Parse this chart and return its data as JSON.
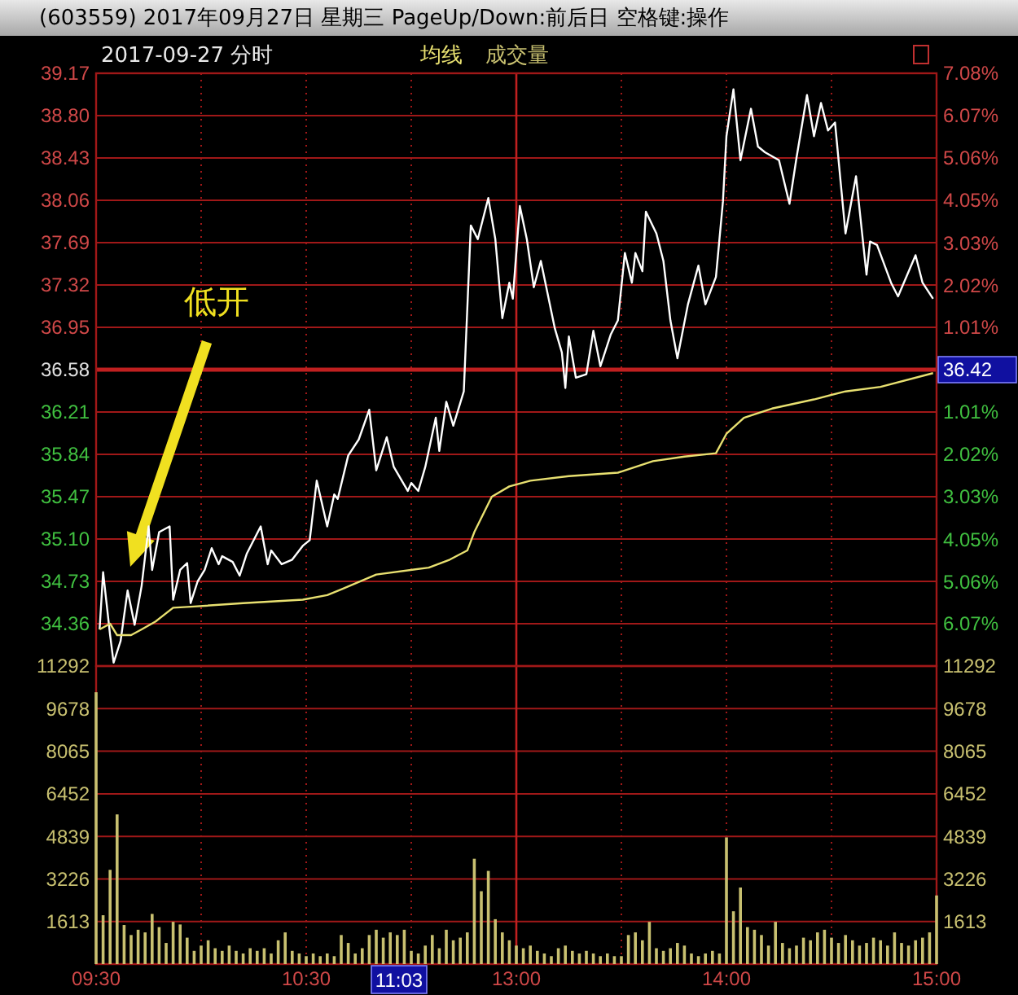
{
  "chart_data": [
    {
      "type": "line",
      "title": "(603559) 2017年09月27日 星期三 PageUp/Down:前后日 空格键:操作",
      "subtitle": "2017-09-27 分时",
      "categories": [
        "09:30",
        null,
        null,
        null,
        null,
        null,
        null,
        null,
        null,
        null,
        null,
        null,
        null,
        null,
        null,
        null,
        null,
        null,
        null,
        null,
        null,
        null,
        null,
        null,
        null,
        null,
        null,
        null,
        null,
        null,
        null,
        null,
        null,
        null,
        null,
        null,
        null,
        null,
        null,
        null,
        null,
        null,
        null,
        null,
        null,
        null,
        null,
        null,
        null,
        null,
        null,
        null,
        null,
        null,
        null,
        null,
        null,
        null,
        null,
        null,
        "10:30",
        null,
        null,
        null,
        null,
        null,
        null,
        null,
        null,
        null,
        null,
        null,
        null,
        null,
        null,
        null,
        null,
        null,
        null,
        null,
        null,
        null,
        null,
        null,
        null,
        null,
        null,
        null,
        null,
        null,
        null,
        null,
        null,
        null,
        null,
        null,
        null,
        null,
        null,
        null,
        null,
        null,
        null,
        null,
        null,
        null,
        null,
        null,
        null,
        null,
        null,
        null,
        null,
        null,
        null,
        null,
        null,
        null,
        null,
        null,
        "13:00",
        null,
        null,
        null,
        null,
        null,
        null,
        null,
        null,
        null,
        null,
        null,
        null,
        null,
        null,
        null,
        null,
        null,
        null,
        null,
        null,
        null,
        null,
        null,
        null,
        null,
        null,
        null,
        null,
        null,
        null,
        null,
        null,
        null,
        null,
        null,
        null,
        null,
        null,
        null,
        null,
        null,
        null,
        null,
        null,
        null,
        null,
        null,
        null,
        null,
        null,
        null,
        null,
        null,
        null,
        null,
        null,
        null,
        null,
        null,
        "14:00",
        null,
        null,
        null,
        null,
        null,
        null,
        null,
        null,
        null,
        null,
        null,
        null,
        null,
        null,
        null,
        null,
        null,
        null,
        null,
        null,
        null,
        null,
        null,
        null,
        null,
        null,
        null,
        null,
        null,
        null,
        null,
        null,
        null,
        null,
        null,
        null,
        null,
        null,
        null,
        null,
        null,
        null,
        null,
        null,
        null,
        null,
        null,
        null,
        null,
        null,
        null,
        null,
        null,
        null,
        null,
        null,
        null,
        null,
        null,
        "15:00"
      ],
      "series": [
        {
          "color": "#ffffff",
          "values": [
            null,
            34.31,
            34.81,
            null,
            34.26,
            34.02,
            null,
            34.21,
            null,
            34.65,
            null,
            34.35,
            null,
            34.69,
            null,
            35.21,
            34.83,
            null,
            35.16,
            null,
            null,
            35.21,
            34.57,
            null,
            34.83,
            null,
            34.89,
            34.54,
            null,
            34.73,
            null,
            34.83,
            null,
            35.02,
            null,
            34.88,
            34.95,
            null,
            null,
            34.9,
            null,
            34.78,
            null,
            34.97,
            null,
            null,
            null,
            35.21,
            null,
            34.88,
            35.0,
            null,
            null,
            34.88,
            null,
            null,
            34.92,
            null,
            null,
            35.04,
            null,
            35.09,
            null,
            35.61,
            null,
            null,
            35.21,
            null,
            35.49,
            35.45,
            null,
            null,
            35.83,
            null,
            null,
            35.97,
            null,
            null,
            36.23,
            null,
            35.7,
            null,
            null,
            35.99,
            null,
            35.73,
            null,
            null,
            null,
            35.52,
            35.59,
            null,
            35.52,
            null,
            35.73,
            null,
            null,
            36.16,
            35.87,
            null,
            36.3,
            null,
            36.09,
            null,
            null,
            36.39,
            null,
            37.84,
            null,
            37.72,
            null,
            null,
            38.08,
            null,
            37.72,
            null,
            37.03,
            null,
            37.34,
            37.2,
            null,
            38.01,
            null,
            37.72,
            null,
            37.3,
            null,
            37.53,
            null,
            null,
            null,
            36.94,
            null,
            36.73,
            36.42,
            36.87,
            null,
            36.51,
            null,
            null,
            36.54,
            null,
            36.92,
            null,
            36.61,
            null,
            null,
            36.89,
            null,
            37.01,
            null,
            37.6,
            null,
            37.34,
            37.6,
            null,
            37.44,
            37.96,
            null,
            null,
            37.77,
            null,
            37.53,
            null,
            37.01,
            null,
            36.68,
            null,
            null,
            37.15,
            null,
            null,
            37.49,
            null,
            37.15,
            null,
            null,
            37.39,
            null,
            38.05,
            38.62,
            null,
            39.03,
            null,
            38.41,
            null,
            null,
            38.86,
            null,
            38.53,
            null,
            38.48,
            null,
            null,
            null,
            38.41,
            null,
            null,
            38.03,
            null,
            38.43,
            null,
            null,
            38.98,
            null,
            38.62,
            null,
            38.91,
            null,
            38.67,
            null,
            38.74,
            null,
            null,
            37.77,
            null,
            null,
            38.27,
            null,
            null,
            37.41,
            37.7,
            null,
            37.67,
            null,
            null,
            null,
            37.34,
            null,
            37.22,
            null,
            null,
            null,
            null,
            37.58,
            null,
            37.34,
            null,
            null,
            37.2,
            null
          ]
        },
        {
          "name": "均线",
          "color": "#e8e070",
          "values": [
            null,
            34.31,
            null,
            null,
            34.36,
            null,
            34.26,
            null,
            null,
            null,
            34.26,
            null,
            null,
            34.31,
            null,
            null,
            null,
            34.38,
            null,
            null,
            null,
            null,
            34.5,
            null,
            null,
            null,
            null,
            null,
            34.51,
            null,
            null,
            null,
            null,
            null,
            null,
            null,
            null,
            null,
            null,
            null,
            null,
            null,
            34.54,
            null,
            null,
            null,
            null,
            null,
            null,
            null,
            null,
            null,
            null,
            null,
            null,
            null,
            null,
            null,
            null,
            34.57,
            null,
            null,
            null,
            null,
            null,
            null,
            34.61,
            null,
            null,
            null,
            34.66,
            null,
            null,
            null,
            null,
            null,
            null,
            null,
            null,
            null,
            34.79,
            null,
            null,
            null,
            null,
            null,
            null,
            null,
            null,
            null,
            null,
            null,
            null,
            null,
            null,
            34.85,
            null,
            null,
            null,
            null,
            null,
            34.92,
            null,
            null,
            null,
            null,
            35.0,
            null,
            35.16,
            null,
            null,
            null,
            null,
            35.47,
            null,
            null,
            null,
            null,
            35.56,
            null,
            null,
            null,
            null,
            null,
            35.61,
            null,
            null,
            null,
            null,
            null,
            null,
            null,
            null,
            null,
            null,
            35.65,
            null,
            null,
            null,
            null,
            null,
            null,
            null,
            null,
            null,
            null,
            null,
            null,
            null,
            35.68,
            null,
            null,
            null,
            null,
            null,
            null,
            null,
            null,
            null,
            35.78,
            null,
            null,
            null,
            null,
            null,
            null,
            null,
            null,
            35.82,
            null,
            null,
            null,
            null,
            null,
            null,
            null,
            null,
            35.85,
            null,
            null,
            36.02,
            null,
            null,
            null,
            null,
            36.16,
            null,
            null,
            null,
            null,
            null,
            null,
            null,
            36.24,
            null,
            null,
            null,
            null,
            null,
            null,
            null,
            null,
            null,
            null,
            null,
            36.32,
            null,
            null,
            null,
            null,
            null,
            null,
            null,
            null,
            36.39,
            null,
            null,
            null,
            null,
            null,
            null,
            null,
            null,
            null,
            36.43,
            null,
            null,
            null,
            null,
            null,
            null,
            null,
            null,
            null,
            null,
            null,
            null,
            null,
            null,
            36.55,
            null
          ]
        }
      ],
      "ylim": [
        33.99,
        39.17
      ],
      "yticks": [
        39.17,
        {
          "value": 38.8,
          "label": "38.80"
        },
        38.43,
        38.06,
        37.69,
        37.32,
        36.95,
        36.58,
        36.21,
        35.84,
        35.47,
        {
          "value": 35.1,
          "label": "35.10"
        },
        34.73,
        34.36
      ],
      "y2lim": [
        -7.08,
        7.08
      ],
      "y2ticks": [
        {
          "value": 7.08,
          "label": "7.08%"
        },
        {
          "value": 6.07,
          "label": "6.07%"
        },
        {
          "value": 5.06,
          "label": "5.06%"
        },
        {
          "value": 4.05,
          "label": "4.05%"
        },
        {
          "value": 3.03,
          "label": "3.03%"
        },
        {
          "value": 2.02,
          "label": "2.02%"
        },
        {
          "value": 1.01,
          "label": "1.01%"
        },
        {
          "value": -1.01,
          "label": "1.01%"
        },
        {
          "value": -2.02,
          "label": "2.02%"
        },
        {
          "value": -3.03,
          "label": "3.03%"
        },
        {
          "value": -4.05,
          "label": "4.05%"
        },
        {
          "value": -5.06,
          "label": "5.06%"
        },
        {
          "value": -6.07,
          "label": "6.07%"
        }
      ],
      "ref_lines": [
        {
          "axis": "y",
          "value": 36.58,
          "color": "#c02020"
        },
        {
          "axis": "x",
          "value": "13:00",
          "color": "#c02020"
        }
      ],
      "annotations": [
        "低开",
        "36.42"
      ],
      "grid": true,
      "legend": "top left",
      "tick_labels": "y",
      "marker": "none",
      "line_style": "solid"
    },
    {
      "type": "bar",
      "categories": [
        "09:30",
        null,
        null,
        null,
        null,
        null,
        null,
        null,
        null,
        null,
        null,
        null,
        null,
        null,
        null,
        null,
        null,
        null,
        null,
        null,
        null,
        null,
        null,
        null,
        null,
        null,
        null,
        null,
        null,
        null,
        null,
        null,
        null,
        null,
        null,
        null,
        null,
        null,
        null,
        null,
        null,
        null,
        null,
        null,
        null,
        null,
        null,
        null,
        null,
        null,
        null,
        null,
        null,
        null,
        null,
        null,
        null,
        null,
        null,
        null,
        "10:30",
        null,
        null,
        null,
        null,
        null,
        null,
        null,
        null,
        null,
        null,
        null,
        null,
        null,
        null,
        null,
        null,
        null,
        null,
        null,
        null,
        null,
        null,
        null,
        null,
        null,
        null,
        null,
        null,
        null,
        null,
        null,
        null,
        null,
        null,
        null,
        null,
        null,
        null,
        null,
        null,
        null,
        null,
        null,
        null,
        null,
        null,
        null,
        null,
        null,
        null,
        null,
        null,
        null,
        null,
        null,
        null,
        null,
        null,
        null,
        "13:00",
        null,
        null,
        null,
        null,
        null,
        null,
        null,
        null,
        null,
        null,
        null,
        null,
        null,
        null,
        null,
        null,
        null,
        null,
        null,
        null,
        null,
        null,
        null,
        null,
        null,
        null,
        null,
        null,
        null,
        null,
        null,
        null,
        null,
        null,
        null,
        null,
        null,
        null,
        null,
        null,
        null,
        null,
        null,
        null,
        null,
        null,
        null,
        null,
        null,
        null,
        null,
        null,
        null,
        null,
        null,
        null,
        null,
        null,
        null,
        "14:00",
        null,
        null,
        null,
        null,
        null,
        null,
        null,
        null,
        null,
        null,
        null,
        null,
        null,
        null,
        null,
        null,
        null,
        null,
        null,
        null,
        null,
        null,
        null,
        null,
        null,
        null,
        null,
        null,
        null,
        null,
        null,
        null,
        null,
        null,
        null,
        null,
        null,
        null,
        null,
        null,
        null,
        null,
        null,
        null,
        null,
        null,
        null,
        null,
        null,
        null,
        null,
        null,
        null,
        null,
        null,
        null,
        null,
        null,
        null,
        "15:00"
      ],
      "series": [
        {
          "name": "成交量",
          "color": "#c8c070",
          "values": [
            10300,
            null,
            1850,
            null,
            3570,
            null,
            5670,
            null,
            1480,
            null,
            1100,
            null,
            1300,
            null,
            1200,
            null,
            1900,
            null,
            1400,
            null,
            800,
            null,
            1600,
            null,
            1500,
            null,
            1000,
            null,
            500,
            null,
            700,
            null,
            900,
            null,
            600,
            null,
            500,
            null,
            700,
            null,
            500,
            null,
            400,
            null,
            600,
            null,
            500,
            null,
            600,
            null,
            400,
            null,
            900,
            null,
            1200,
            null,
            500,
            null,
            400,
            null,
            300,
            null,
            400,
            null,
            300,
            null,
            400,
            null,
            300,
            null,
            1100,
            null,
            800,
            null,
            400,
            null,
            600,
            null,
            1100,
            null,
            1300,
            null,
            1000,
            null,
            1200,
            null,
            1100,
            null,
            1300,
            null,
            500,
            null,
            400,
            null,
            700,
            null,
            1100,
            null,
            600,
            null,
            1300,
            null,
            900,
            null,
            1000,
            null,
            1200,
            null,
            3990,
            null,
            2760,
            null,
            3530,
            null,
            1700,
            null,
            1200,
            null,
            900,
            null,
            700,
            null,
            600,
            null,
            700,
            null,
            500,
            null,
            400,
            null,
            300,
            null,
            600,
            null,
            700,
            null,
            500,
            null,
            400,
            null,
            500,
            null,
            400,
            null,
            300,
            null,
            400,
            null,
            300,
            null,
            300,
            null,
            1100,
            null,
            1200,
            null,
            900,
            null,
            1600,
            null,
            600,
            null,
            500,
            null,
            600,
            null,
            800,
            null,
            700,
            null,
            400,
            null,
            300,
            null,
            400,
            null,
            500,
            null,
            400,
            null,
            4800,
            null,
            2000,
            null,
            2900,
            null,
            1400,
            null,
            1300,
            null,
            1100,
            null,
            700,
            null,
            1600,
            null,
            800,
            null,
            600,
            null,
            700,
            null,
            1000,
            null,
            900,
            null,
            1200,
            null,
            1300,
            null,
            1000,
            null,
            800,
            null,
            1100,
            null,
            900,
            null,
            700,
            null,
            800,
            null,
            1000,
            null,
            900,
            null,
            700,
            null,
            1200,
            null,
            800,
            null,
            700,
            null,
            900,
            null,
            1000,
            null,
            1200,
            null,
            2600
          ]
        }
      ],
      "ylim": [
        0,
        11292
      ],
      "yticks": [
        1613,
        3226,
        4839,
        6452,
        8065,
        9678,
        11292
      ],
      "y2lim": [
        0,
        11292
      ],
      "y2ticks": [
        1613,
        3226,
        4839,
        6452,
        8065,
        9678,
        11292
      ],
      "ref_lines": [
        {
          "axis": "x",
          "value": "13:00",
          "color": "#c02020"
        }
      ],
      "annotations": [
        "11:03"
      ],
      "grid": true,
      "legend": "top left"
    }
  ]
}
